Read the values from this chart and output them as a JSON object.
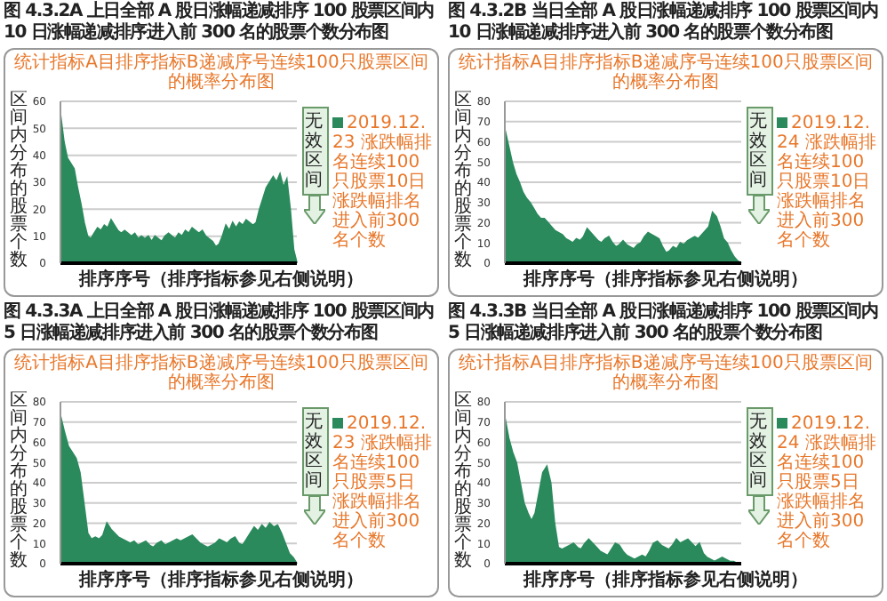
{
  "chart_data": [
    {
      "type": "area",
      "title": "图 4.3.2A  上日全部 A 股日涨幅递减排序 100 股票区间内 10 日涨幅递减排序进入前 300 名的股票个数分布图",
      "subtitle": "统计指标A目排序指标B递减序号连续100只股票区间的概率分布图",
      "xlabel": "排序序号（排序指标参见右侧说明）",
      "ylabel": "区间内分布的股票个数",
      "ylim": [
        0,
        60
      ],
      "yticks": [
        0,
        10,
        20,
        30,
        40,
        50,
        60
      ],
      "grid": "y",
      "legend": "right",
      "annotations": [
        "无效区间"
      ],
      "categories": [
        null,
        null,
        null,
        null,
        null,
        null,
        null,
        null,
        null,
        null,
        null,
        null,
        null,
        null,
        null,
        null,
        null,
        null,
        null,
        null,
        null,
        null,
        null,
        null,
        null,
        null,
        null,
        null,
        null,
        null,
        null,
        null,
        null,
        null,
        null,
        null,
        null,
        null,
        null,
        null,
        null,
        null,
        null,
        null,
        null,
        null,
        null,
        null,
        null,
        null,
        null,
        null,
        null,
        null,
        null,
        null,
        null,
        null,
        null,
        null,
        null,
        null,
        null,
        null,
        null,
        null,
        null,
        null,
        null,
        null,
        null
      ],
      "series": [
        {
          "name": "2019.12.23 涨跌幅排名连续100只股票10日涨跌幅排名进入前300名个数",
          "color": "#2a8a5c",
          "values": [
            55,
            45,
            39,
            37,
            35,
            28,
            22,
            15,
            10,
            9,
            11,
            13,
            12,
            14,
            13,
            16,
            14,
            12,
            11,
            12,
            11,
            10,
            11,
            9,
            10,
            9,
            10,
            8,
            10,
            9,
            8,
            10,
            11,
            10,
            9,
            11,
            10,
            12,
            11,
            13,
            12,
            11,
            12,
            10,
            9,
            8,
            6,
            7,
            10,
            14,
            12,
            15,
            13,
            15,
            14,
            16,
            15,
            14,
            15,
            20,
            24,
            28,
            30,
            32,
            30,
            33,
            28,
            31,
            20,
            5,
            0
          ]
        }
      ]
    },
    {
      "type": "area",
      "title": "图 4.3.2B  当日全部 A 股日涨幅递减排序 100 股票区间内 10 日涨幅递减排序进入前 300 名的股票个数分布图",
      "subtitle": "统计指标A目排序指标B递减序号连续100只股票区间的概率分布图",
      "xlabel": "排序序号（排序指标参见右侧说明）",
      "ylabel": "区间内分布的股票个数",
      "ylim": [
        0,
        80
      ],
      "yticks": [
        0,
        10,
        20,
        30,
        40,
        50,
        60,
        70,
        80
      ],
      "grid": "y",
      "legend": "right",
      "annotations": [
        "无效区间"
      ],
      "categories": [
        null,
        null,
        null,
        null,
        null,
        null,
        null,
        null,
        null,
        null,
        null,
        null,
        null,
        null,
        null,
        null,
        null,
        null,
        null,
        null,
        null,
        null,
        null,
        null,
        null,
        null,
        null,
        null,
        null,
        null,
        null,
        null,
        null,
        null,
        null,
        null,
        null,
        null,
        null,
        null,
        null,
        null,
        null,
        null,
        null,
        null,
        null,
        null,
        null,
        null,
        null,
        null,
        null,
        null,
        null,
        null,
        null,
        null,
        null,
        null,
        null,
        null,
        null,
        null,
        null,
        null,
        null
      ],
      "series": [
        {
          "name": "2019.12.24 涨跌幅排名连续100只股票10日涨跌幅排名进入前300名个数",
          "color": "#2a8a5c",
          "values": [
            66,
            58,
            50,
            44,
            40,
            35,
            32,
            30,
            27,
            24,
            22,
            22,
            20,
            18,
            16,
            15,
            14,
            12,
            11,
            10,
            12,
            11,
            13,
            17,
            15,
            13,
            11,
            10,
            12,
            13,
            10,
            8,
            9,
            11,
            9,
            8,
            7,
            9,
            10,
            13,
            15,
            14,
            13,
            12,
            8,
            5,
            6,
            8,
            7,
            10,
            9,
            11,
            12,
            13,
            12,
            14,
            16,
            18,
            25,
            23,
            18,
            12,
            10,
            6,
            3,
            1,
            0
          ]
        }
      ]
    },
    {
      "type": "area",
      "title": "图 4.3.3A  上日全部 A 股日涨幅递减排序 100 股票区间内 5 日涨幅递减排序进入前 300 名的股票个数分布图",
      "subtitle": "统计指标A目排序指标B递减序号连续100只股票区间的概率分布图",
      "xlabel": "排序序号（排序指标参见右侧说明）",
      "ylabel": "区间内分布的股票个数",
      "ylim": [
        0,
        80
      ],
      "yticks": [
        0,
        10,
        20,
        30,
        40,
        50,
        60,
        70,
        80
      ],
      "grid": "y",
      "legend": "right",
      "annotations": [
        "无效区间"
      ],
      "categories": [
        null,
        null,
        null,
        null,
        null,
        null,
        null,
        null,
        null,
        null,
        null,
        null,
        null,
        null,
        null,
        null,
        null,
        null,
        null,
        null,
        null,
        null,
        null,
        null,
        null,
        null,
        null,
        null,
        null,
        null,
        null,
        null,
        null,
        null,
        null,
        null,
        null,
        null,
        null,
        null,
        null,
        null,
        null,
        null,
        null,
        null,
        null,
        null,
        null,
        null,
        null,
        null,
        null,
        null,
        null,
        null,
        null,
        null,
        null,
        null,
        null,
        null
      ],
      "series": [
        {
          "name": "2019.12.23 涨跌幅排名连续100只股票5日涨跌幅排名进入前300名个数",
          "color": "#2a8a5c",
          "values": [
            73,
            65,
            58,
            55,
            52,
            45,
            30,
            15,
            12,
            13,
            12,
            14,
            20,
            17,
            15,
            13,
            12,
            11,
            10,
            11,
            9,
            10,
            11,
            9,
            8,
            10,
            11,
            9,
            10,
            11,
            12,
            11,
            12,
            13,
            14,
            12,
            10,
            9,
            8,
            9,
            10,
            12,
            11,
            10,
            12,
            13,
            10,
            9,
            12,
            15,
            18,
            16,
            19,
            17,
            20,
            18,
            19,
            15,
            10,
            5,
            3,
            0
          ]
        }
      ]
    },
    {
      "type": "area",
      "title": "图 4.3.3B  当日全部 A 股日涨幅递减排序 100 股票区间内 5 日涨幅递减排序进入前 300 名的股票个数分布图",
      "subtitle": "统计指标A目排序指标B递减序号连续100只股票区间的概率分布图",
      "xlabel": "排序序号（排序指标参见右侧说明）",
      "ylabel": "区间内分布的股票个数",
      "ylim": [
        0,
        80
      ],
      "yticks": [
        0,
        10,
        20,
        30,
        40,
        50,
        60,
        70,
        80
      ],
      "grid": "y",
      "legend": "right",
      "annotations": [
        "无效区间"
      ],
      "categories": [
        null,
        null,
        null,
        null,
        null,
        null,
        null,
        null,
        null,
        null,
        null,
        null,
        null,
        null,
        null,
        null,
        null,
        null,
        null,
        null,
        null,
        null,
        null,
        null,
        null,
        null,
        null,
        null,
        null,
        null,
        null,
        null,
        null,
        null,
        null,
        null,
        null,
        null,
        null,
        null,
        null,
        null,
        null,
        null,
        null,
        null,
        null,
        null,
        null,
        null,
        null,
        null,
        null,
        null,
        null,
        null,
        null,
        null,
        null,
        null,
        null,
        null,
        null
      ],
      "series": [
        {
          "name": "2019.12.24 涨跌幅排名连续100只股票5日涨跌幅排名进入前300名个数",
          "color": "#2a8a5c",
          "values": [
            72,
            62,
            55,
            50,
            40,
            30,
            25,
            21,
            25,
            35,
            45,
            48,
            40,
            20,
            8,
            7,
            8,
            9,
            10,
            8,
            7,
            10,
            12,
            10,
            8,
            6,
            5,
            4,
            7,
            10,
            9,
            6,
            4,
            3,
            2,
            3,
            4,
            3,
            6,
            10,
            11,
            9,
            8,
            7,
            9,
            12,
            10,
            11,
            12,
            10,
            8,
            10,
            5,
            3,
            2,
            1,
            2,
            3,
            2,
            1,
            1,
            0,
            0
          ]
        }
      ]
    }
  ]
}
